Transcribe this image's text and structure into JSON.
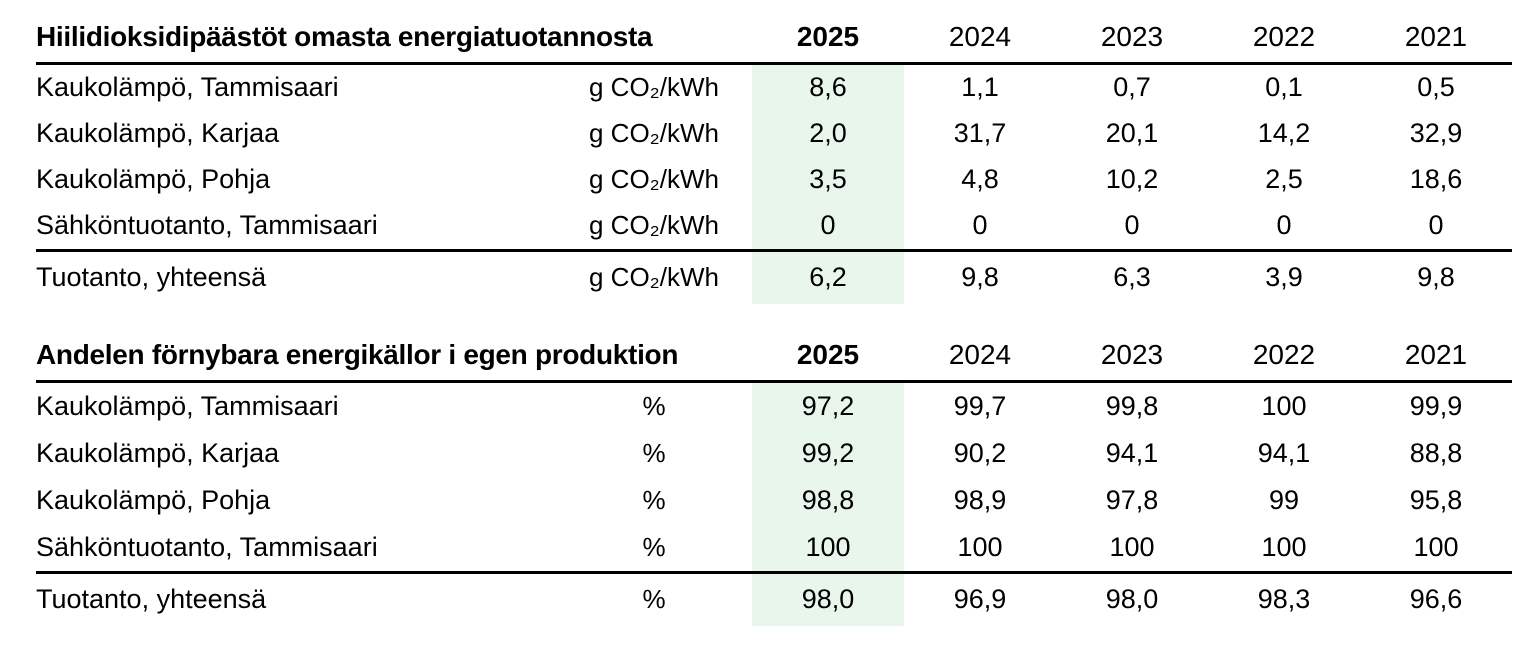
{
  "theme": {
    "highlight_2025_color": "#e9f6ec",
    "rule_color": "#000000",
    "text_color": "#000000"
  },
  "sections": [
    {
      "title": "Hiilidioksidipäästöt omasta energiatuotannosta",
      "years": [
        "2025",
        "2024",
        "2023",
        "2022",
        "2021"
      ],
      "rows": [
        {
          "label": "Kaukolämpö, Tammisaari",
          "unit": "g CO₂/kWh",
          "values": [
            "8,6",
            "1,1",
            "0,7",
            "0,1",
            "0,5"
          ]
        },
        {
          "label": "Kaukolämpö, Karjaa",
          "unit": "g CO₂/kWh",
          "values": [
            "2,0",
            "31,7",
            "20,1",
            "14,2",
            "32,9"
          ]
        },
        {
          "label": "Kaukolämpö, Pohja",
          "unit": "g CO₂/kWh",
          "values": [
            "3,5",
            "4,8",
            "10,2",
            "2,5",
            "18,6"
          ]
        },
        {
          "label": "Sähköntuotanto, Tammisaari",
          "unit": "g CO₂/kWh",
          "values": [
            "0",
            "0",
            "0",
            "0",
            "0"
          ]
        }
      ],
      "total": {
        "label": "Tuotanto, yhteensä",
        "unit": "g CO₂/kWh",
        "values": [
          "6,2",
          "9,8",
          "6,3",
          "3,9",
          "9,8"
        ]
      }
    },
    {
      "title": "Andelen förnybara energikällor i egen produktion",
      "years": [
        "2025",
        "2024",
        "2023",
        "2022",
        "2021"
      ],
      "rows": [
        {
          "label": "Kaukolämpö, Tammisaari",
          "unit": "%",
          "values": [
            "97,2",
            "99,7",
            "99,8",
            "100",
            "99,9"
          ]
        },
        {
          "label": "Kaukolämpö, Karjaa",
          "unit": "%",
          "values": [
            "99,2",
            "90,2",
            "94,1",
            "94,1",
            "88,8"
          ]
        },
        {
          "label": "Kaukolämpö, Pohja",
          "unit": "%",
          "values": [
            "98,8",
            "98,9",
            "97,8",
            "99",
            "95,8"
          ]
        },
        {
          "label": "Sähköntuotanto, Tammisaari",
          "unit": "%",
          "values": [
            "100",
            "100",
            "100",
            "100",
            "100"
          ]
        }
      ],
      "total": {
        "label": "Tuotanto, yhteensä",
        "unit": "%",
        "values": [
          "98,0",
          "96,9",
          "98,0",
          "98,3",
          "96,6"
        ]
      }
    }
  ]
}
